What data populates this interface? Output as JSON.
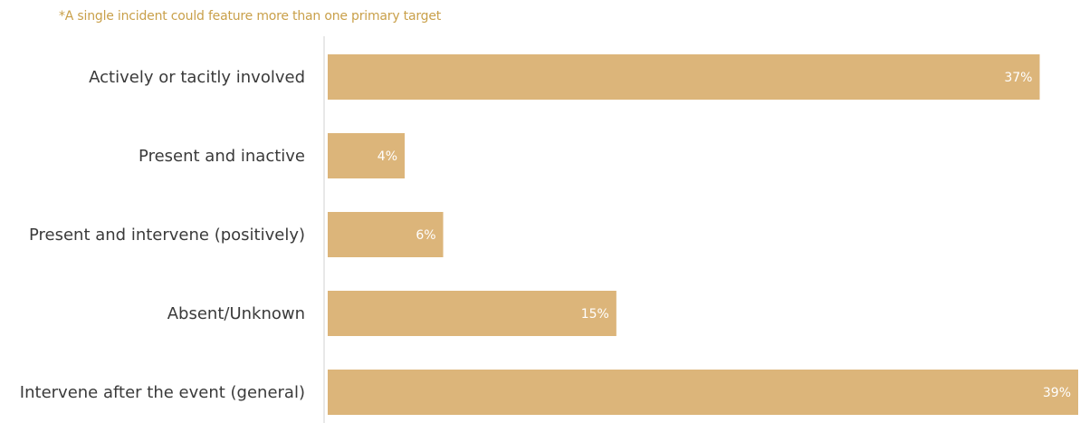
{
  "footnote": "*A single incident could feature more than one primary target",
  "colors": {
    "bar": "#dcb57a",
    "axis": "#d0d0d0",
    "label": "#3a3a3a",
    "value_label": "#ffffff",
    "footnote": "#c9a04a"
  },
  "chart_data": {
    "type": "bar",
    "orientation": "horizontal",
    "categories": [
      "Actively or tacitly involved",
      "Present and inactive",
      "Present and intervene (positively)",
      "Absent/Unknown",
      "Intervene after the event (general)"
    ],
    "values": [
      37,
      4,
      6,
      15,
      39
    ],
    "value_labels": [
      "37%",
      "4%",
      "6%",
      "15%",
      "39%"
    ],
    "xlim": [
      0,
      39
    ],
    "grid": false,
    "legend": "none"
  }
}
